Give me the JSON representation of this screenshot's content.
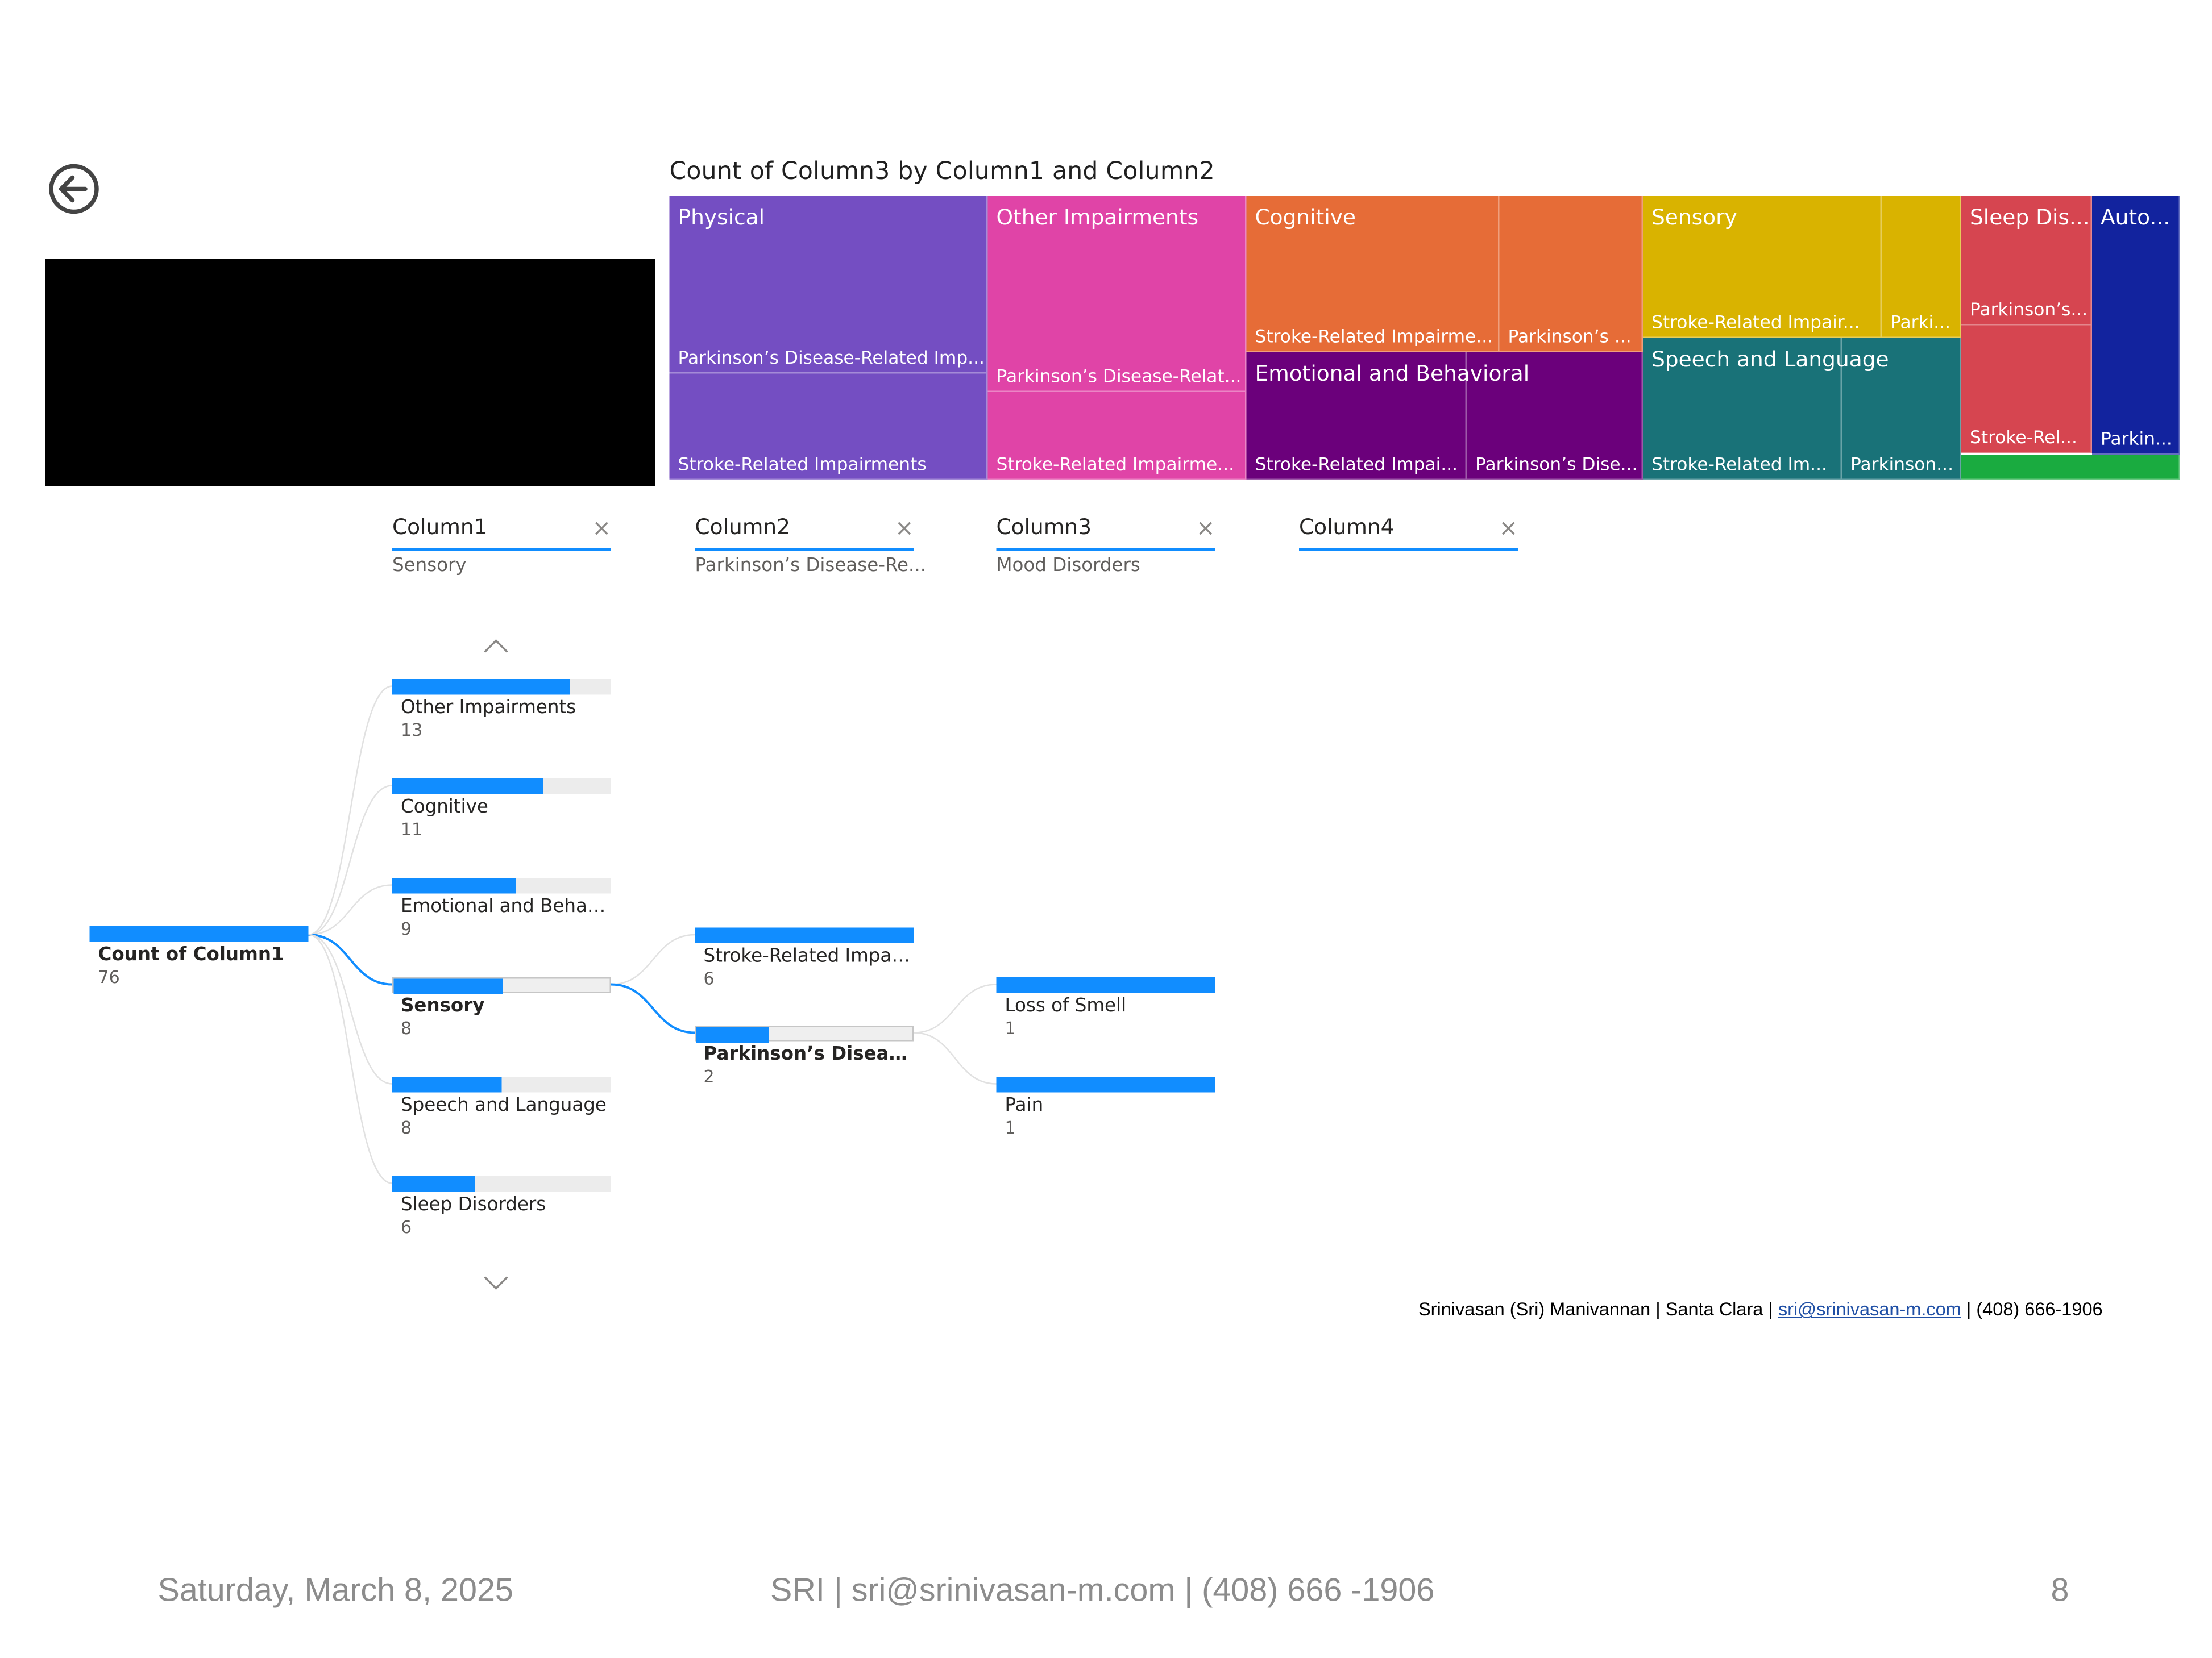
{
  "back_icon": "back-arrow-circle-icon",
  "treemap": {
    "title": "Count of Column3 by Column1 and Column2",
    "groups": [
      {
        "name": "Physical",
        "color": "#744EC2",
        "cells": [
          "Parkinson's Disease-Related Imp...",
          "Stroke-Related Impairments"
        ]
      },
      {
        "name": "Other Impairments",
        "color": "#E044A7",
        "cells": [
          "Parkinson's Disease-Relat...",
          "Stroke-Related Impairme..."
        ]
      },
      {
        "name": "Cognitive",
        "color": "#E66C37",
        "cells": [
          "Stroke-Related Impairme...",
          "Parkinson's ..."
        ]
      },
      {
        "name": "Emotional and Behavioral",
        "color": "#6B007B",
        "cells": [
          "Stroke-Related Impai...",
          "Parkinson's Dise..."
        ]
      },
      {
        "name": "Sensory",
        "color": "#D9B300",
        "cells": [
          "Stroke-Related Impair...",
          "Parki..."
        ]
      },
      {
        "name": "Speech and Language",
        "color": "#197278",
        "cells": [
          "Stroke-Related Im...",
          "Parkinson..."
        ]
      },
      {
        "name": "Sleep Dis...",
        "color": "#D64550",
        "cells": [
          "Parkinson's...",
          "Stroke-Rel..."
        ]
      },
      {
        "name": "Auto...",
        "color": "#12239E",
        "cells": [
          "Parkin..."
        ]
      },
      {
        "name": "",
        "color": "#1AAB40",
        "cells": [
          ""
        ]
      }
    ]
  },
  "headers": [
    {
      "title": "Column1",
      "subtitle": "Sensory"
    },
    {
      "title": "Column2",
      "subtitle": "Parkinson's Disease-Re..."
    },
    {
      "title": "Column3",
      "subtitle": "Mood Disorders"
    },
    {
      "title": "Column4",
      "subtitle": ""
    }
  ],
  "close_glyph": "×",
  "decomp": {
    "root": {
      "label": "Count of Column1",
      "value": "76"
    },
    "level1": [
      {
        "label": "Other Impairments",
        "value": "13",
        "fraction": 0.8125
      },
      {
        "label": "Cognitive",
        "value": "11",
        "fraction": 0.6875
      },
      {
        "label": "Emotional and Behavi...",
        "value": "9",
        "fraction": 0.5625
      },
      {
        "label": "Sensory",
        "value": "8",
        "fraction": 0.5,
        "selected": true
      },
      {
        "label": "Speech and Language",
        "value": "8",
        "fraction": 0.5
      },
      {
        "label": "Sleep Disorders",
        "value": "6",
        "fraction": 0.375
      }
    ],
    "level2": [
      {
        "label": "Stroke-Related Impair...",
        "value": "6",
        "fraction": 1.0
      },
      {
        "label": "Parkinson's Disease-...",
        "value": "2",
        "fraction": 0.333,
        "selected": true
      }
    ],
    "level3": [
      {
        "label": "Loss of Smell",
        "value": "1",
        "fraction": 1.0
      },
      {
        "label": "Pain",
        "value": "1",
        "fraction": 1.0
      }
    ],
    "accent": "#118DFF"
  },
  "contact": {
    "prefix": "Srinivasan (Sri) Manivannan | Santa Clara | ",
    "email": "sri@srinivasan-m.com",
    "suffix": " | (408) 666-1906"
  },
  "footer": {
    "date": "Saturday, March 8, 2025",
    "center": "SRI | sri@srinivasan-m.com | (408) 666 -1906",
    "page": "8"
  }
}
